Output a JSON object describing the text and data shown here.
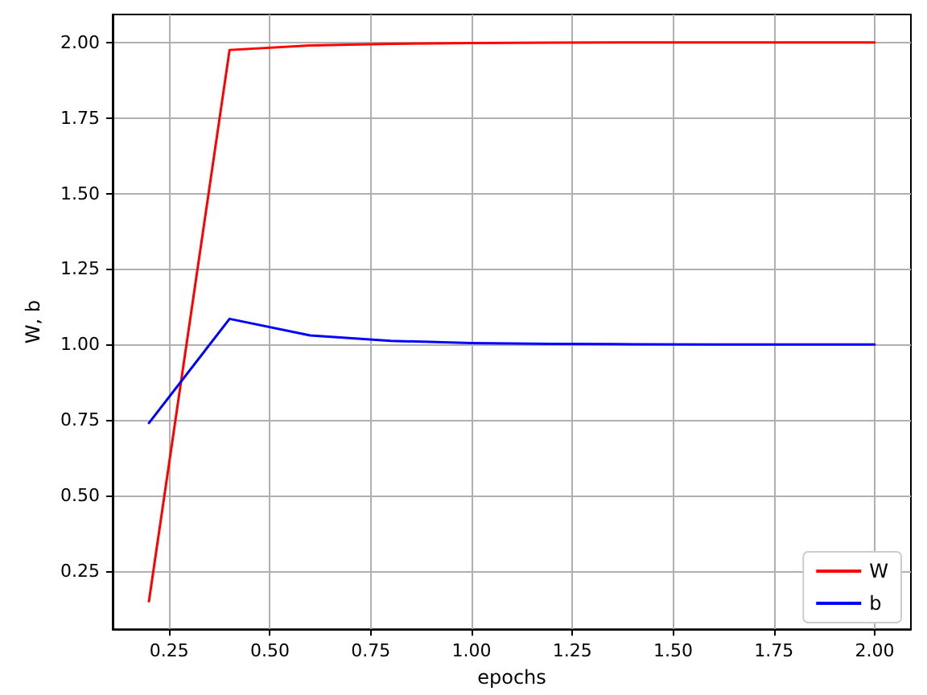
{
  "chart_data": {
    "type": "line",
    "xlabel": "epochs",
    "ylabel": "W, b",
    "x": [
      0.2,
      0.4,
      0.6,
      0.8,
      1.0,
      1.2,
      1.4,
      1.6,
      1.8,
      2.0
    ],
    "series": [
      {
        "name": "W",
        "color": "#ff0000",
        "values": [
          0.15,
          1.975,
          1.99,
          1.995,
          1.998,
          1.999,
          2.0,
          2.0,
          2.0,
          2.0
        ]
      },
      {
        "name": "b",
        "color": "#0000ff",
        "values": [
          0.74,
          1.085,
          1.03,
          1.012,
          1.005,
          1.002,
          1.001,
          1.0,
          1.0,
          1.0
        ]
      }
    ],
    "xlim": [
      0.11,
      2.09
    ],
    "ylim": [
      0.0575,
      2.0925
    ],
    "xticks": [
      {
        "value": 0.25,
        "label": "0.25"
      },
      {
        "value": 0.5,
        "label": "0.50"
      },
      {
        "value": 0.75,
        "label": "0.75"
      },
      {
        "value": 1,
        "label": "1.00"
      },
      {
        "value": 1.25,
        "label": "1.25"
      },
      {
        "value": 1.5,
        "label": "1.50"
      },
      {
        "value": 1.75,
        "label": "1.75"
      },
      {
        "value": 2,
        "label": "2.00"
      }
    ],
    "yticks": [
      {
        "value": 0.25,
        "label": "0.25"
      },
      {
        "value": 0.5,
        "label": "0.50"
      },
      {
        "value": 0.75,
        "label": "0.75"
      },
      {
        "value": 1,
        "label": "1.00"
      },
      {
        "value": 1.25,
        "label": "1.25"
      },
      {
        "value": 1.5,
        "label": "1.50"
      },
      {
        "value": 1.75,
        "label": "1.75"
      },
      {
        "value": 2,
        "label": "2.00"
      }
    ],
    "grid": true,
    "legend": "bottom right",
    "marker": "none",
    "line_style": "solid"
  }
}
